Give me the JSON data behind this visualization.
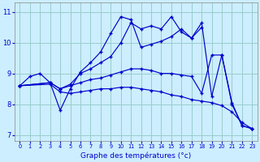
{
  "xlabel": "Graphe des températures (°c)",
  "bg_color": "#cceeff",
  "grid_color": "#99cccc",
  "line_color": "#0000cc",
  "xlim": [
    -0.5,
    23.5
  ],
  "ylim": [
    6.8,
    11.3
  ],
  "yticks": [
    7,
    8,
    9,
    10,
    11
  ],
  "xticks": [
    0,
    1,
    2,
    3,
    4,
    5,
    6,
    7,
    8,
    9,
    10,
    11,
    12,
    13,
    14,
    15,
    16,
    17,
    18,
    19,
    20,
    21,
    22,
    23
  ],
  "series": [
    {
      "x": [
        0,
        1,
        2,
        3,
        4,
        5,
        6,
        7,
        8,
        9,
        10,
        11,
        12,
        13,
        14,
        15,
        16,
        17,
        18
      ],
      "y": [
        8.6,
        8.9,
        9.0,
        8.7,
        7.8,
        8.5,
        9.05,
        9.35,
        9.7,
        10.3,
        10.85,
        10.75,
        9.85,
        9.95,
        10.05,
        10.2,
        10.45,
        10.15,
        10.5
      ]
    },
    {
      "x": [
        0,
        3,
        4,
        5,
        6,
        7,
        8,
        9,
        10,
        11,
        12,
        13,
        14,
        15,
        16,
        17,
        18,
        19,
        20,
        21,
        22,
        23
      ],
      "y": [
        8.6,
        8.7,
        8.5,
        8.65,
        9.0,
        9.15,
        9.35,
        9.55,
        10.0,
        10.65,
        10.45,
        10.55,
        10.45,
        10.85,
        10.35,
        10.15,
        10.65,
        8.25,
        9.6,
        8.0,
        7.3,
        7.2
      ]
    },
    {
      "x": [
        0,
        3,
        4,
        5,
        6,
        7,
        8,
        9,
        10,
        11,
        12,
        13,
        14,
        15,
        16,
        17,
        18,
        19,
        20,
        21,
        22,
        23
      ],
      "y": [
        8.6,
        8.7,
        8.5,
        8.6,
        8.7,
        8.8,
        8.85,
        8.95,
        9.05,
        9.15,
        9.15,
        9.1,
        9.0,
        9.0,
        8.95,
        8.9,
        8.35,
        9.6,
        9.6,
        8.05,
        7.3,
        7.2
      ]
    },
    {
      "x": [
        0,
        3,
        4,
        5,
        6,
        7,
        8,
        9,
        10,
        11,
        12,
        13,
        14,
        15,
        16,
        17,
        18,
        19,
        20,
        21,
        22,
        23
      ],
      "y": [
        8.6,
        8.65,
        8.4,
        8.35,
        8.4,
        8.45,
        8.5,
        8.5,
        8.55,
        8.55,
        8.5,
        8.45,
        8.4,
        8.3,
        8.25,
        8.15,
        8.1,
        8.05,
        7.95,
        7.75,
        7.4,
        7.2
      ]
    }
  ]
}
